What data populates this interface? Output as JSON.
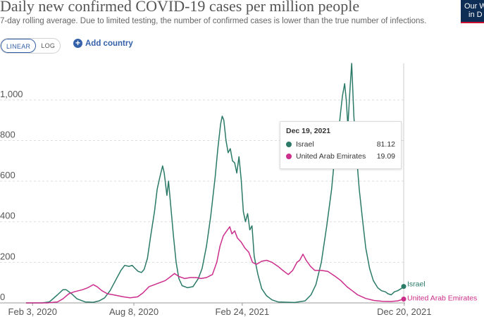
{
  "header": {
    "title": "Daily new confirmed COVID-19 cases per million people",
    "subtitle": "7-day rolling average. Due to limited testing, the number of confirmed cases is lower than the true number of infections.",
    "logo_text_line1": "Our W",
    "logo_text_line2": "in D"
  },
  "controls": {
    "linear_label": "LINEAR",
    "log_label": "LOG",
    "add_country_label": "Add country",
    "selected_scale": "LINEAR"
  },
  "tooltip": {
    "date": "Dec 19, 2021",
    "rows": [
      {
        "name": "Israel",
        "value": "81.12"
      },
      {
        "name": "United Arab Emirates",
        "value": "19.09"
      }
    ]
  },
  "colors": {
    "israel": "#2b7a68",
    "uae": "#cc2e8c",
    "grid": "#dddddd",
    "axis_text": "#555555"
  },
  "chart_data": {
    "type": "line",
    "title": "Daily new confirmed COVID-19 cases per million people",
    "ylim": [
      0,
      1180
    ],
    "y_ticks": [
      0,
      200,
      400,
      600,
      800,
      1000
    ],
    "y_tick_labels": [
      "0",
      "200",
      "400",
      "600",
      "800",
      "1,000"
    ],
    "x_tick_labels": [
      "Feb 3, 2020",
      "Aug 8, 2020",
      "Feb 24, 2021",
      "Dec 20, 2021"
    ],
    "x_tick_dates": [
      "2020-02-03",
      "2020-08-08",
      "2021-02-24",
      "2021-12-20"
    ],
    "grid": "horizontal",
    "legend": "line-end labels",
    "series": [
      {
        "name": "Israel",
        "color": "#2b7a68",
        "points": [
          [
            "2020-01-22",
            0
          ],
          [
            "2020-02-20",
            0
          ],
          [
            "2020-03-05",
            5
          ],
          [
            "2020-03-20",
            40
          ],
          [
            "2020-03-30",
            65
          ],
          [
            "2020-04-05",
            65
          ],
          [
            "2020-04-15",
            45
          ],
          [
            "2020-04-25",
            20
          ],
          [
            "2020-05-10",
            5
          ],
          [
            "2020-05-25",
            3
          ],
          [
            "2020-06-05",
            10
          ],
          [
            "2020-06-15",
            25
          ],
          [
            "2020-06-25",
            60
          ],
          [
            "2020-07-05",
            110
          ],
          [
            "2020-07-15",
            160
          ],
          [
            "2020-07-22",
            185
          ],
          [
            "2020-07-30",
            180
          ],
          [
            "2020-08-05",
            185
          ],
          [
            "2020-08-10",
            170
          ],
          [
            "2020-08-16",
            155
          ],
          [
            "2020-08-22",
            150
          ],
          [
            "2020-08-27",
            165
          ],
          [
            "2020-09-02",
            220
          ],
          [
            "2020-09-08",
            330
          ],
          [
            "2020-09-15",
            450
          ],
          [
            "2020-09-20",
            560
          ],
          [
            "2020-09-25",
            620
          ],
          [
            "2020-09-30",
            675
          ],
          [
            "2020-10-03",
            640
          ],
          [
            "2020-10-08",
            530
          ],
          [
            "2020-10-11",
            600
          ],
          [
            "2020-10-15",
            480
          ],
          [
            "2020-10-20",
            330
          ],
          [
            "2020-10-25",
            200
          ],
          [
            "2020-10-30",
            120
          ],
          [
            "2020-11-05",
            85
          ],
          [
            "2020-11-15",
            75
          ],
          [
            "2020-11-25",
            80
          ],
          [
            "2020-12-05",
            120
          ],
          [
            "2020-12-12",
            170
          ],
          [
            "2020-12-20",
            280
          ],
          [
            "2020-12-28",
            430
          ],
          [
            "2021-01-05",
            620
          ],
          [
            "2021-01-10",
            760
          ],
          [
            "2021-01-15",
            880
          ],
          [
            "2021-01-18",
            920
          ],
          [
            "2021-01-21",
            900
          ],
          [
            "2021-01-25",
            800
          ],
          [
            "2021-01-29",
            740
          ],
          [
            "2021-02-02",
            760
          ],
          [
            "2021-02-06",
            700
          ],
          [
            "2021-02-10",
            690
          ],
          [
            "2021-02-14",
            640
          ],
          [
            "2021-02-18",
            720
          ],
          [
            "2021-02-22",
            610
          ],
          [
            "2021-02-26",
            450
          ],
          [
            "2021-03-02",
            400
          ],
          [
            "2021-03-06",
            440
          ],
          [
            "2021-03-10",
            360
          ],
          [
            "2021-03-14",
            380
          ],
          [
            "2021-03-18",
            230
          ],
          [
            "2021-03-25",
            140
          ],
          [
            "2021-04-01",
            70
          ],
          [
            "2021-04-10",
            35
          ],
          [
            "2021-04-20",
            15
          ],
          [
            "2021-05-01",
            5
          ],
          [
            "2021-06-01",
            2
          ],
          [
            "2021-06-20",
            10
          ],
          [
            "2021-07-01",
            40
          ],
          [
            "2021-07-10",
            90
          ],
          [
            "2021-07-20",
            200
          ],
          [
            "2021-07-30",
            380
          ],
          [
            "2021-08-08",
            560
          ],
          [
            "2021-08-15",
            760
          ],
          [
            "2021-08-20",
            820
          ],
          [
            "2021-08-25",
            950
          ],
          [
            "2021-08-28",
            1020
          ],
          [
            "2021-09-01",
            1080
          ],
          [
            "2021-09-04",
            1000
          ],
          [
            "2021-09-07",
            870
          ],
          [
            "2021-09-11",
            1060
          ],
          [
            "2021-09-14",
            1180
          ],
          [
            "2021-09-18",
            920
          ],
          [
            "2021-09-22",
            760
          ],
          [
            "2021-09-28",
            560
          ],
          [
            "2021-10-04",
            410
          ],
          [
            "2021-10-10",
            270
          ],
          [
            "2021-10-17",
            170
          ],
          [
            "2021-10-24",
            110
          ],
          [
            "2021-11-01",
            75
          ],
          [
            "2021-11-08",
            60
          ],
          [
            "2021-11-15",
            55
          ],
          [
            "2021-11-20",
            45
          ],
          [
            "2021-11-26",
            40
          ],
          [
            "2021-12-02",
            55
          ],
          [
            "2021-12-08",
            60
          ],
          [
            "2021-12-14",
            70
          ],
          [
            "2021-12-19",
            81.12
          ]
        ]
      },
      {
        "name": "United Arab Emirates",
        "color": "#cc2e8c",
        "points": [
          [
            "2020-01-22",
            0
          ],
          [
            "2020-03-01",
            0
          ],
          [
            "2020-03-20",
            5
          ],
          [
            "2020-03-30",
            20
          ],
          [
            "2020-04-10",
            45
          ],
          [
            "2020-04-20",
            55
          ],
          [
            "2020-05-05",
            65
          ],
          [
            "2020-05-15",
            75
          ],
          [
            "2020-05-25",
            90
          ],
          [
            "2020-06-01",
            80
          ],
          [
            "2020-06-10",
            60
          ],
          [
            "2020-06-20",
            45
          ],
          [
            "2020-07-01",
            40
          ],
          [
            "2020-07-10",
            35
          ],
          [
            "2020-07-20",
            30
          ],
          [
            "2020-08-01",
            25
          ],
          [
            "2020-08-15",
            30
          ],
          [
            "2020-08-25",
            50
          ],
          [
            "2020-09-05",
            80
          ],
          [
            "2020-09-15",
            90
          ],
          [
            "2020-09-25",
            100
          ],
          [
            "2020-10-05",
            110
          ],
          [
            "2020-10-15",
            130
          ],
          [
            "2020-10-22",
            145
          ],
          [
            "2020-10-30",
            130
          ],
          [
            "2020-11-10",
            120
          ],
          [
            "2020-11-20",
            125
          ],
          [
            "2020-12-01",
            125
          ],
          [
            "2020-12-10",
            120
          ],
          [
            "2020-12-20",
            125
          ],
          [
            "2020-12-31",
            140
          ],
          [
            "2021-01-08",
            200
          ],
          [
            "2021-01-14",
            280
          ],
          [
            "2021-01-20",
            330
          ],
          [
            "2021-01-25",
            350
          ],
          [
            "2021-02-01",
            375
          ],
          [
            "2021-02-05",
            340
          ],
          [
            "2021-02-10",
            355
          ],
          [
            "2021-02-15",
            320
          ],
          [
            "2021-02-22",
            300
          ],
          [
            "2021-03-01",
            270
          ],
          [
            "2021-03-08",
            250
          ],
          [
            "2021-03-15",
            200
          ],
          [
            "2021-03-22",
            190
          ],
          [
            "2021-04-01",
            205
          ],
          [
            "2021-04-10",
            210
          ],
          [
            "2021-04-20",
            200
          ],
          [
            "2021-05-01",
            180
          ],
          [
            "2021-05-10",
            160
          ],
          [
            "2021-05-20",
            140
          ],
          [
            "2021-05-28",
            160
          ],
          [
            "2021-06-05",
            200
          ],
          [
            "2021-06-10",
            210
          ],
          [
            "2021-06-16",
            240
          ],
          [
            "2021-06-22",
            210
          ],
          [
            "2021-06-30",
            180
          ],
          [
            "2021-07-08",
            160
          ],
          [
            "2021-07-20",
            160
          ],
          [
            "2021-08-01",
            155
          ],
          [
            "2021-08-15",
            130
          ],
          [
            "2021-08-25",
            110
          ],
          [
            "2021-09-05",
            80
          ],
          [
            "2021-09-15",
            60
          ],
          [
            "2021-09-25",
            40
          ],
          [
            "2021-10-10",
            22
          ],
          [
            "2021-10-25",
            12
          ],
          [
            "2021-11-10",
            8
          ],
          [
            "2021-11-25",
            7
          ],
          [
            "2021-12-08",
            10
          ],
          [
            "2021-12-19",
            19.09
          ]
        ]
      }
    ]
  }
}
